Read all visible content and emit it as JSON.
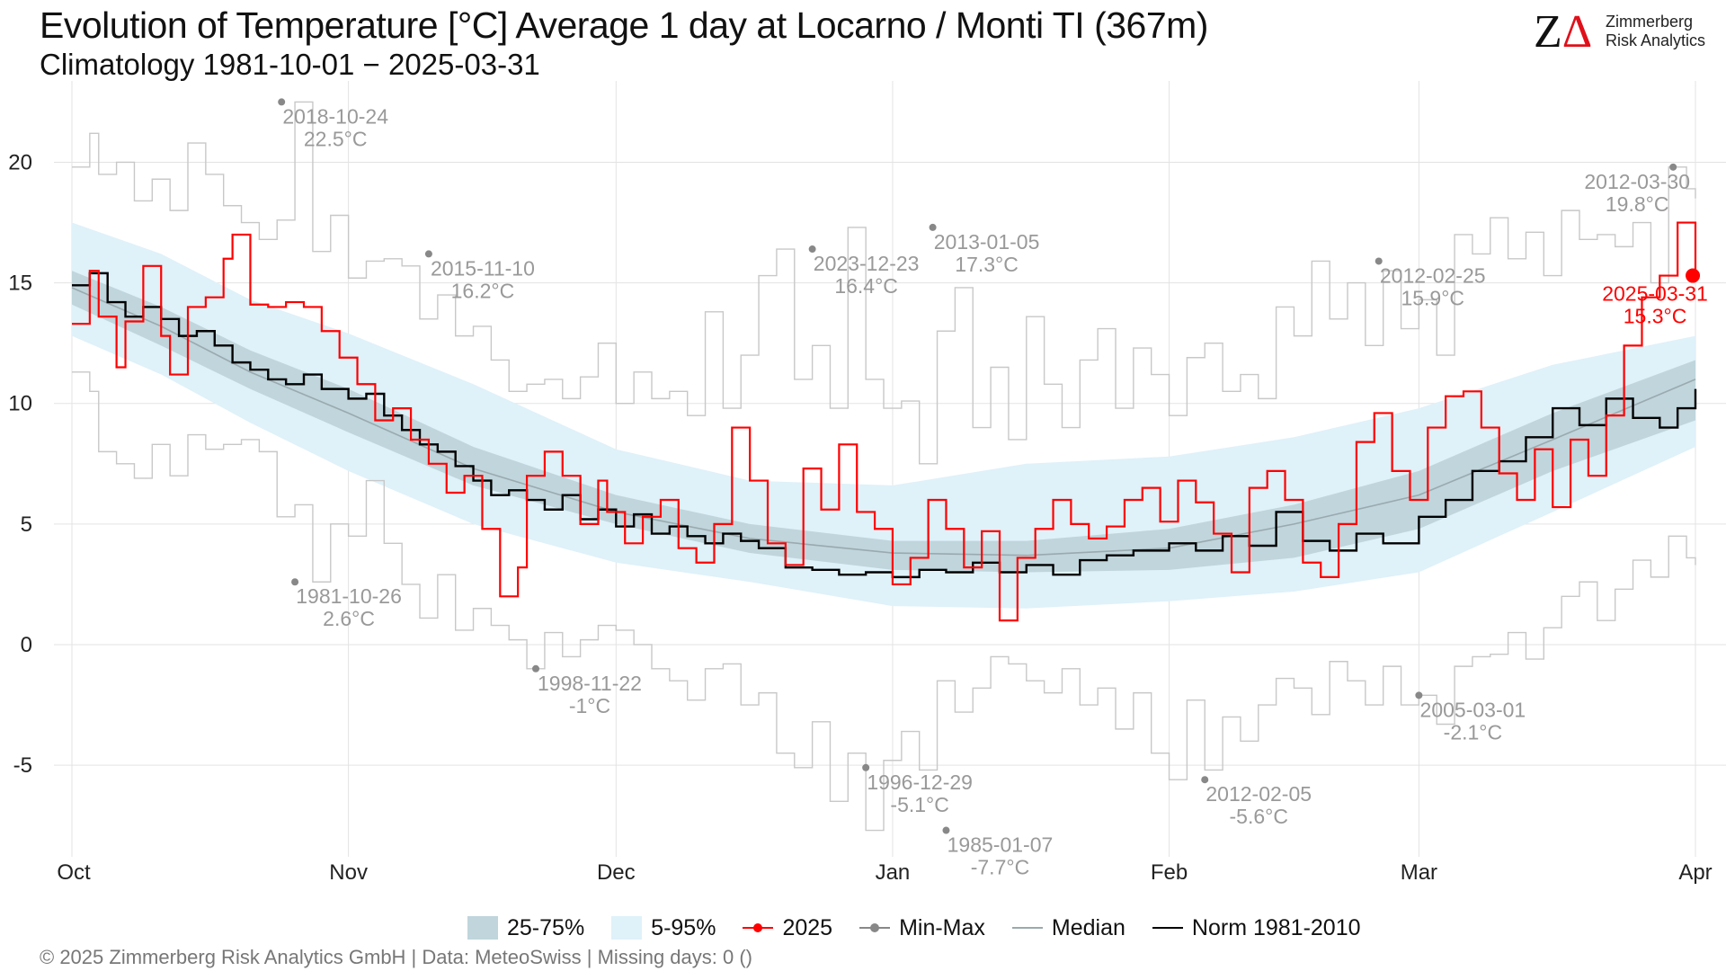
{
  "header": {
    "title": "Evolution of Temperature [°C] Average 1 day at Locarno / Monti  TI (367m)",
    "subtitle": "Climatology 1981-10-01 − 2025-03-31"
  },
  "logo": {
    "line1": "Zimmerberg",
    "line2": "Risk Analytics"
  },
  "footer": {
    "text": "©  2025 Zimmerberg Risk Analytics GmbH | Data: MeteoSwiss | Missing days: 0 ()"
  },
  "colors": {
    "band_25_75": "#c0d5dc",
    "band_5_95": "#dff1f9",
    "series_2025": "#ff0000",
    "min_max": "#c8c8c8",
    "median": "#9aaaae",
    "norm": "#000000",
    "annotation": "#999999",
    "grid": "#e3e3e3"
  },
  "chart_data": {
    "type": "line",
    "title": "Evolution of Temperature [°C] Average 1 day at Locarno / Monti  TI (367m)",
    "subtitle": "Climatology 1981-10-01 − 2025-03-31",
    "x_unit": "day of season, 0 = Oct 1",
    "x_range": [
      0,
      182
    ],
    "ylim": [
      -8.5,
      23
    ],
    "y_ticks": [
      -5,
      0,
      5,
      10,
      15,
      20
    ],
    "x_ticks": [
      {
        "label": "Oct",
        "x": 0
      },
      {
        "label": "Nov",
        "x": 31
      },
      {
        "label": "Dec",
        "x": 61
      },
      {
        "label": "Jan",
        "x": 92
      },
      {
        "label": "Feb",
        "x": 123
      },
      {
        "label": "Mar",
        "x": 151
      },
      {
        "label": "Apr",
        "x": 182
      }
    ],
    "grid": true,
    "legend_position": "bottom",
    "legend": [
      {
        "label": "25-75%",
        "kind": "band",
        "key": "band_25_75"
      },
      {
        "label": "5-95%",
        "kind": "band",
        "key": "band_5_95"
      },
      {
        "label": "2025",
        "kind": "line-dot",
        "key": "series_2025"
      },
      {
        "label": "Min-Max",
        "kind": "line-dot",
        "key": "min_max"
      },
      {
        "label": "Median",
        "kind": "line",
        "key": "median"
      },
      {
        "label": "Norm 1981-2010",
        "kind": "line",
        "key": "norm"
      }
    ],
    "bands": {
      "x": [
        0,
        10,
        20,
        31,
        45,
        61,
        76,
        92,
        107,
        123,
        137,
        151,
        166,
        182
      ],
      "p5": [
        12.8,
        11.2,
        9.2,
        7.2,
        5.0,
        3.4,
        2.6,
        1.6,
        1.5,
        1.8,
        2.2,
        3.0,
        5.5,
        8.2
      ],
      "p25": [
        14.1,
        12.4,
        10.6,
        8.8,
        6.6,
        5.0,
        3.8,
        3.1,
        3.0,
        3.1,
        3.6,
        4.8,
        7.2,
        9.3
      ],
      "p75": [
        15.5,
        14.0,
        12.2,
        10.6,
        8.2,
        6.2,
        5.0,
        4.3,
        4.3,
        4.8,
        5.8,
        7.2,
        9.6,
        11.8
      ],
      "p95": [
        17.5,
        16.2,
        14.3,
        12.9,
        10.8,
        8.1,
        6.8,
        6.6,
        7.5,
        7.8,
        8.6,
        9.8,
        11.6,
        12.8
      ]
    },
    "series": [
      {
        "name": "Median",
        "x": [
          0,
          10,
          20,
          31,
          45,
          61,
          76,
          92,
          107,
          123,
          137,
          151,
          166,
          182
        ],
        "y": [
          14.8,
          13.2,
          11.3,
          9.6,
          7.3,
          5.5,
          4.4,
          3.8,
          3.7,
          4.0,
          5.0,
          6.2,
          8.5,
          11.0
        ]
      },
      {
        "name": "Norm 1981-2010",
        "x": [
          0,
          2,
          4,
          6,
          8,
          10,
          12,
          14,
          16,
          18,
          20,
          22,
          24,
          26,
          28,
          31,
          33,
          35,
          37,
          39,
          41,
          43,
          45,
          47,
          49,
          51,
          53,
          55,
          57,
          59,
          61,
          63,
          65,
          67,
          69,
          71,
          73,
          75,
          77,
          80,
          83,
          86,
          89,
          92,
          95,
          98,
          101,
          104,
          107,
          110,
          113,
          116,
          119,
          123,
          126,
          129,
          132,
          135,
          138,
          141,
          144,
          147,
          151,
          154,
          157,
          160,
          163,
          166,
          169,
          172,
          175,
          178,
          180,
          182
        ],
        "y": [
          14.9,
          15.4,
          14.2,
          13.6,
          14.0,
          13.5,
          12.8,
          13.0,
          12.4,
          11.7,
          11.4,
          11.0,
          10.8,
          11.2,
          10.6,
          10.2,
          10.4,
          9.5,
          8.9,
          8.3,
          8.0,
          7.4,
          6.8,
          6.2,
          6.4,
          6.0,
          5.6,
          6.2,
          5.2,
          5.6,
          4.9,
          5.4,
          4.6,
          4.9,
          4.5,
          4.2,
          4.6,
          4.3,
          4.0,
          3.2,
          3.1,
          2.9,
          3.0,
          2.8,
          3.1,
          3.0,
          3.4,
          3.0,
          3.3,
          2.9,
          3.5,
          3.7,
          3.9,
          4.2,
          3.9,
          4.5,
          4.1,
          5.5,
          4.3,
          3.9,
          4.6,
          4.2,
          5.3,
          6.0,
          7.2,
          7.6,
          8.6,
          9.8,
          9.1,
          10.2,
          9.4,
          9.0,
          9.8,
          10.6
        ]
      },
      {
        "name": "2025",
        "x": [
          0,
          2,
          3,
          5,
          6,
          8,
          10,
          11,
          13,
          15,
          17,
          18,
          20,
          22,
          24,
          26,
          28,
          30,
          32,
          34,
          36,
          38,
          40,
          42,
          44,
          46,
          48,
          50,
          51,
          53,
          55,
          57,
          59,
          60,
          62,
          64,
          66,
          68,
          70,
          72,
          74,
          76,
          78,
          80,
          82,
          84,
          86,
          88,
          90,
          92,
          94,
          96,
          98,
          100,
          102,
          104,
          106,
          108,
          110,
          112,
          114,
          116,
          118,
          120,
          122,
          124,
          126,
          128,
          130,
          132,
          134,
          136,
          138,
          140,
          142,
          144,
          146,
          148,
          150,
          152,
          154,
          156,
          158,
          160,
          162,
          164,
          166,
          168,
          170,
          172,
          174,
          176,
          178,
          180,
          182
        ],
        "y": [
          13.3,
          15.5,
          13.6,
          11.5,
          13.4,
          15.7,
          12.8,
          11.2,
          14.0,
          14.4,
          16.0,
          17.0,
          14.1,
          14.0,
          14.2,
          14.0,
          13.0,
          11.9,
          10.8,
          9.3,
          9.8,
          8.5,
          7.5,
          6.3,
          7.0,
          4.8,
          2.0,
          3.2,
          7.0,
          8.0,
          7.0,
          5.0,
          6.8,
          5.5,
          4.2,
          5.3,
          6.0,
          4.0,
          3.4,
          5.0,
          9.0,
          6.8,
          4.2,
          3.3,
          7.3,
          5.6,
          8.3,
          5.5,
          4.8,
          2.5,
          3.6,
          6.0,
          4.8,
          3.2,
          4.7,
          1.0,
          3.6,
          4.8,
          6.0,
          5.0,
          4.4,
          4.9,
          6.0,
          6.5,
          5.1,
          6.8,
          5.9,
          4.6,
          3.0,
          6.5,
          7.2,
          6.0,
          3.4,
          2.8,
          5.0,
          8.4,
          9.6,
          7.2,
          6.0,
          9.0,
          10.3,
          10.5,
          9.0,
          7.1,
          6.0,
          8.1,
          5.7,
          8.5,
          7.0,
          9.5,
          12.4,
          14.4,
          15.3,
          17.5,
          15.3
        ]
      },
      {
        "name": "Max",
        "x": [
          0,
          2,
          3,
          5,
          7,
          9,
          11,
          13,
          15,
          17,
          19,
          21,
          23,
          25,
          27,
          29,
          31,
          33,
          35,
          37,
          39,
          41,
          43,
          45,
          47,
          49,
          51,
          53,
          55,
          57,
          59,
          61,
          63,
          65,
          67,
          69,
          71,
          73,
          75,
          77,
          79,
          81,
          83,
          85,
          87,
          89,
          91,
          93,
          95,
          97,
          99,
          101,
          103,
          105,
          107,
          109,
          111,
          113,
          115,
          117,
          119,
          121,
          123,
          125,
          127,
          129,
          131,
          133,
          135,
          137,
          139,
          141,
          143,
          145,
          147,
          149,
          151,
          153,
          155,
          157,
          159,
          161,
          163,
          165,
          167,
          169,
          171,
          173,
          175,
          177,
          179,
          181,
          182
        ],
        "y": [
          19.8,
          21.2,
          19.5,
          20.0,
          18.4,
          19.3,
          18.0,
          20.8,
          19.5,
          18.2,
          17.5,
          16.8,
          17.6,
          22.5,
          16.3,
          17.8,
          15.2,
          15.9,
          16.0,
          15.7,
          13.5,
          14.5,
          12.8,
          13.2,
          11.8,
          10.5,
          10.8,
          11.0,
          10.2,
          11.1,
          12.5,
          10.0,
          11.3,
          10.2,
          10.5,
          9.5,
          13.8,
          9.8,
          12.0,
          15.3,
          16.4,
          11.0,
          12.4,
          9.8,
          17.3,
          11.0,
          9.8,
          10.1,
          7.5,
          13.0,
          14.8,
          9.0,
          11.5,
          8.5,
          13.6,
          10.8,
          9.0,
          11.8,
          13.1,
          9.8,
          12.3,
          11.2,
          9.5,
          11.9,
          12.5,
          10.5,
          11.2,
          10.2,
          14.0,
          12.8,
          15.9,
          13.5,
          15.0,
          12.4,
          15.5,
          13.1,
          14.3,
          12.0,
          17.0,
          16.2,
          17.7,
          16.0,
          17.1,
          15.3,
          18.0,
          16.8,
          17.0,
          16.5,
          17.5,
          15.0,
          19.8,
          18.9,
          18.5
        ]
      },
      {
        "name": "Min",
        "x": [
          0,
          2,
          3,
          5,
          7,
          9,
          11,
          13,
          15,
          17,
          19,
          21,
          23,
          25,
          27,
          29,
          31,
          33,
          35,
          37,
          39,
          41,
          43,
          45,
          47,
          49,
          51,
          53,
          55,
          57,
          59,
          61,
          63,
          65,
          67,
          69,
          71,
          73,
          75,
          77,
          79,
          81,
          83,
          85,
          87,
          89,
          91,
          93,
          95,
          97,
          99,
          101,
          103,
          105,
          107,
          109,
          111,
          113,
          115,
          117,
          119,
          121,
          123,
          125,
          127,
          129,
          131,
          133,
          135,
          137,
          139,
          141,
          143,
          145,
          147,
          149,
          151,
          153,
          155,
          157,
          159,
          161,
          163,
          165,
          167,
          169,
          171,
          173,
          175,
          177,
          179,
          181,
          182
        ],
        "y": [
          11.3,
          10.5,
          8.0,
          7.5,
          6.9,
          8.3,
          7.0,
          8.7,
          8.1,
          8.3,
          8.5,
          8.0,
          5.3,
          5.8,
          2.6,
          5.0,
          4.5,
          6.8,
          4.2,
          2.5,
          1.1,
          2.9,
          0.6,
          1.5,
          0.8,
          0.2,
          -1.0,
          0.5,
          -0.5,
          0.2,
          0.8,
          0.6,
          0.0,
          -1.0,
          -1.5,
          -2.3,
          -1.0,
          -0.8,
          -2.5,
          -2.0,
          -4.5,
          -5.1,
          -3.2,
          -6.5,
          -4.5,
          -7.7,
          -4.8,
          -3.6,
          -5.2,
          -1.5,
          -2.8,
          -1.8,
          -0.5,
          -0.8,
          -1.5,
          -2.0,
          -1.0,
          -2.5,
          -1.8,
          -3.5,
          -2.0,
          -4.5,
          -5.6,
          -2.3,
          -5.2,
          -3.0,
          -4.0,
          -2.5,
          -1.4,
          -1.8,
          -2.9,
          -0.7,
          -1.5,
          -2.5,
          -0.9,
          -2.5,
          -2.1,
          -3.3,
          -0.9,
          -0.5,
          -0.4,
          0.5,
          -0.6,
          0.7,
          2.0,
          2.6,
          1.0,
          2.3,
          3.5,
          2.8,
          4.5,
          3.6,
          3.3
        ]
      }
    ],
    "annotations": [
      {
        "date": "2018-10-24",
        "value": "22.5°C",
        "x": 23.5,
        "y": 22.5,
        "dir": "right"
      },
      {
        "date": "2015-11-10",
        "value": "16.2°C",
        "x": 40,
        "y": 16.2,
        "dir": "right"
      },
      {
        "date": "2023-12-23",
        "value": "16.4°C",
        "x": 83,
        "y": 16.4,
        "dir": "right"
      },
      {
        "date": "2013-01-05",
        "value": "17.3°C",
        "x": 96.5,
        "y": 17.3,
        "dir": "right"
      },
      {
        "date": "2012-02-25",
        "value": "15.9°C",
        "x": 146.5,
        "y": 15.9,
        "dir": "right"
      },
      {
        "date": "2012-03-30",
        "value": "19.8°C",
        "x": 179.5,
        "y": 19.8,
        "dir": "left"
      },
      {
        "date": "1981-10-26",
        "value": "2.6°C",
        "x": 25,
        "y": 2.6,
        "dir": "right"
      },
      {
        "date": "1998-11-22",
        "value": "-1°C",
        "x": 52,
        "y": -1.0,
        "dir": "right"
      },
      {
        "date": "1996-12-29",
        "value": "-5.1°C",
        "x": 89,
        "y": -5.1,
        "dir": "right"
      },
      {
        "date": "1985-01-07",
        "value": "-7.7°C",
        "x": 98,
        "y": -7.7,
        "dir": "right"
      },
      {
        "date": "2012-02-05",
        "value": "-5.6°C",
        "x": 127,
        "y": -5.6,
        "dir": "right"
      },
      {
        "date": "2005-03-01",
        "value": "-2.1°C",
        "x": 151,
        "y": -2.1,
        "dir": "right"
      },
      {
        "date": "2025-03-31",
        "value": "15.3°C",
        "x": 181.5,
        "y": 15.3,
        "dir": "left",
        "current": true
      }
    ]
  }
}
